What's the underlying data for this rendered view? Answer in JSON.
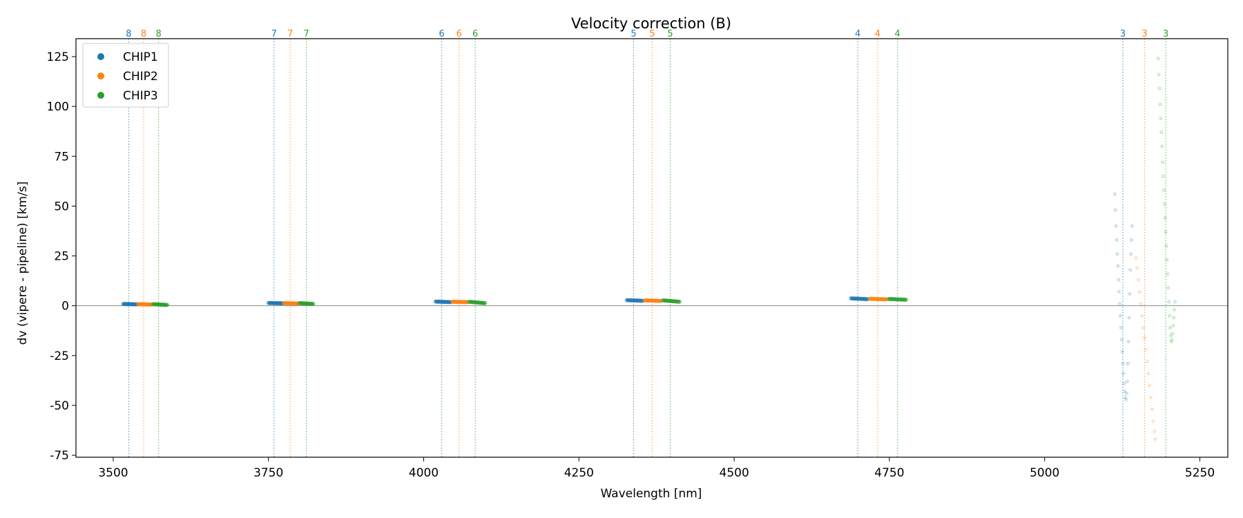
{
  "chart_data": {
    "type": "scatter",
    "title": "Velocity correction (B)",
    "xlabel": "Wavelength [nm]",
    "ylabel": "dv (vipere - pipeline) [km/s]",
    "xlim": [
      3440,
      5295
    ],
    "ylim": [
      -76,
      134
    ],
    "xticks": [
      3500,
      3750,
      4000,
      4250,
      4500,
      4750,
      5000,
      5250
    ],
    "yticks": [
      -75,
      -50,
      -25,
      0,
      25,
      50,
      75,
      100,
      125
    ],
    "zero_line": 0,
    "grid": false,
    "legend_position": "top-left",
    "colors": {
      "CHIP1": "#1f77b4",
      "CHIP2": "#ff7f0e",
      "CHIP3": "#2ca02c",
      "zero_line": "#888888"
    },
    "order_markers": [
      {
        "order": "8",
        "series": "CHIP1",
        "x": 3525
      },
      {
        "order": "8",
        "series": "CHIP2",
        "x": 3549
      },
      {
        "order": "8",
        "series": "CHIP3",
        "x": 3573
      },
      {
        "order": "7",
        "series": "CHIP1",
        "x": 3759
      },
      {
        "order": "7",
        "series": "CHIP2",
        "x": 3785
      },
      {
        "order": "7",
        "series": "CHIP3",
        "x": 3811
      },
      {
        "order": "6",
        "series": "CHIP1",
        "x": 4029
      },
      {
        "order": "6",
        "series": "CHIP2",
        "x": 4057
      },
      {
        "order": "6",
        "series": "CHIP3",
        "x": 4083
      },
      {
        "order": "5",
        "series": "CHIP1",
        "x": 4338
      },
      {
        "order": "5",
        "series": "CHIP2",
        "x": 4368
      },
      {
        "order": "5",
        "series": "CHIP3",
        "x": 4397
      },
      {
        "order": "4",
        "series": "CHIP1",
        "x": 4699
      },
      {
        "order": "4",
        "series": "CHIP2",
        "x": 4731
      },
      {
        "order": "4",
        "series": "CHIP3",
        "x": 4763
      },
      {
        "order": "3",
        "series": "CHIP1",
        "x": 5126
      },
      {
        "order": "3",
        "series": "CHIP2",
        "x": 5161
      },
      {
        "order": "3",
        "series": "CHIP3",
        "x": 5195
      }
    ],
    "series": [
      {
        "name": "CHIP1",
        "segments": [
          {
            "x_start": 3516,
            "x_end": 3538,
            "y_start": 0.9,
            "y_end": 0.7
          },
          {
            "x_start": 3750,
            "x_end": 3773,
            "y_start": 1.4,
            "y_end": 1.2
          },
          {
            "x_start": 4019,
            "x_end": 4044,
            "y_start": 2.1,
            "y_end": 1.8
          },
          {
            "x_start": 4327,
            "x_end": 4353,
            "y_start": 2.8,
            "y_end": 2.5
          },
          {
            "x_start": 4688,
            "x_end": 4715,
            "y_start": 3.7,
            "y_end": 3.3
          }
        ]
      },
      {
        "name": "CHIP2",
        "segments": [
          {
            "x_start": 3540,
            "x_end": 3562,
            "y_start": 0.8,
            "y_end": 0.6
          },
          {
            "x_start": 3775,
            "x_end": 3798,
            "y_start": 1.3,
            "y_end": 1.1
          },
          {
            "x_start": 4046,
            "x_end": 4071,
            "y_start": 2.0,
            "y_end": 1.8
          },
          {
            "x_start": 4356,
            "x_end": 4382,
            "y_start": 2.7,
            "y_end": 2.4
          },
          {
            "x_start": 4718,
            "x_end": 4746,
            "y_start": 3.5,
            "y_end": 3.2
          }
        ]
      },
      {
        "name": "CHIP3",
        "segments": [
          {
            "x_start": 3564,
            "x_end": 3587,
            "y_start": 0.8,
            "y_end": 0.4
          },
          {
            "x_start": 3800,
            "x_end": 3822,
            "y_start": 1.3,
            "y_end": 0.9
          },
          {
            "x_start": 4073,
            "x_end": 4099,
            "y_start": 2.0,
            "y_end": 1.3
          },
          {
            "x_start": 4385,
            "x_end": 4412,
            "y_start": 2.7,
            "y_end": 2.0
          },
          {
            "x_start": 4749,
            "x_end": 4777,
            "y_start": 3.4,
            "y_end": 3.0
          }
        ]
      }
    ],
    "order3_points": {
      "CHIP1": [
        [
          5113,
          56
        ],
        [
          5114,
          48
        ],
        [
          5115,
          40
        ],
        [
          5116,
          33
        ],
        [
          5117,
          26
        ],
        [
          5118,
          20
        ],
        [
          5119,
          13
        ],
        [
          5120,
          7
        ],
        [
          5121,
          1
        ],
        [
          5122,
          -5
        ],
        [
          5123,
          -11
        ],
        [
          5124,
          -17
        ],
        [
          5125,
          -23
        ],
        [
          5126,
          -29
        ],
        [
          5127,
          -34
        ],
        [
          5128,
          -39
        ],
        [
          5129,
          -43
        ],
        [
          5130,
          -46
        ],
        [
          5131,
          -47
        ],
        [
          5132,
          -44
        ],
        [
          5133,
          -38
        ],
        [
          5134,
          -29
        ],
        [
          5135,
          -18
        ],
        [
          5136,
          -6
        ],
        [
          5137,
          6
        ],
        [
          5138,
          18
        ],
        [
          5139,
          26
        ],
        [
          5140,
          33
        ],
        [
          5141,
          40
        ]
      ],
      "CHIP2": [
        [
          5147,
          24
        ],
        [
          5149,
          19
        ],
        [
          5151,
          13
        ],
        [
          5153,
          7
        ],
        [
          5155,
          1
        ],
        [
          5157,
          -5
        ],
        [
          5159,
          -11
        ],
        [
          5161,
          -16
        ],
        [
          5163,
          -22
        ],
        [
          5165,
          -28
        ],
        [
          5167,
          -34
        ],
        [
          5169,
          -40
        ],
        [
          5171,
          -46
        ],
        [
          5173,
          -52
        ],
        [
          5175,
          -58
        ],
        [
          5177,
          -63
        ],
        [
          5178,
          -67
        ]
      ],
      "CHIP3": [
        [
          5183,
          124
        ],
        [
          5184,
          116
        ],
        [
          5185,
          109
        ],
        [
          5186,
          101
        ],
        [
          5187,
          94
        ],
        [
          5188,
          87
        ],
        [
          5189,
          80
        ],
        [
          5190,
          72
        ],
        [
          5191,
          65
        ],
        [
          5192,
          58
        ],
        [
          5193,
          51
        ],
        [
          5194,
          44
        ],
        [
          5195,
          37
        ],
        [
          5196,
          30
        ],
        [
          5197,
          23
        ],
        [
          5198,
          16
        ],
        [
          5199,
          9
        ],
        [
          5200,
          2
        ],
        [
          5201,
          -5
        ],
        [
          5202,
          -11
        ],
        [
          5203,
          -15
        ],
        [
          5204,
          -18
        ],
        [
          5205,
          -17
        ],
        [
          5206,
          -14
        ],
        [
          5207,
          -10
        ],
        [
          5208,
          -6
        ],
        [
          5209,
          -2
        ],
        [
          5210,
          2
        ]
      ]
    }
  }
}
